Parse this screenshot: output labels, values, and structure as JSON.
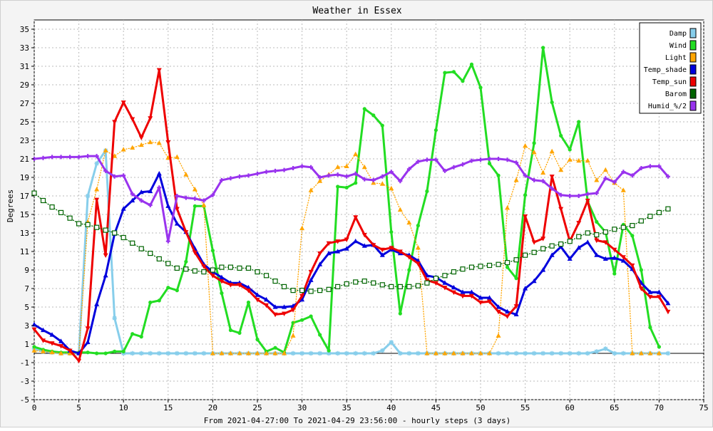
{
  "chart_data": {
    "type": "line",
    "title": "Weather in Essex",
    "xlabel": "From 2021-04-27:00 To 2021-04-29 23:56:00 - hourly steps (3 days)",
    "ylabel": "Degrees",
    "xlim": [
      0,
      75
    ],
    "ylim": [
      -5,
      36
    ],
    "xticks": [
      0,
      5,
      10,
      15,
      20,
      25,
      30,
      35,
      40,
      45,
      50,
      55,
      60,
      65,
      70,
      75
    ],
    "yticks": [
      -5,
      -3,
      -1,
      1,
      3,
      5,
      7,
      9,
      11,
      13,
      15,
      17,
      19,
      21,
      23,
      25,
      27,
      29,
      31,
      33,
      35
    ],
    "grid": true,
    "legend_position": "top-right",
    "series": [
      {
        "name": "Damp",
        "color": "#87ceeb",
        "style": "solid",
        "marker": "star",
        "values": [
          0.5,
          0.2,
          0.1,
          0,
          0,
          0,
          17,
          20.5,
          21.9,
          3.8,
          0,
          0,
          0,
          0,
          0,
          0,
          0,
          0,
          0,
          0,
          0,
          0,
          0,
          0,
          0,
          0,
          0,
          0,
          0,
          0,
          0,
          0,
          0,
          0,
          0,
          0,
          0,
          0,
          0,
          0.3,
          1.2,
          0,
          0,
          0,
          0,
          0,
          0,
          0,
          0,
          0,
          0,
          0,
          0,
          0,
          0,
          0,
          0,
          0,
          0,
          0,
          0,
          0,
          0,
          0.2,
          0.5,
          0,
          0,
          0,
          0,
          0,
          0,
          0
        ]
      },
      {
        "name": "Wind",
        "color": "#22dd22",
        "style": "solid",
        "marker": "circle",
        "values": [
          0.7,
          0.4,
          0.2,
          0.1,
          0.1,
          0.1,
          0.1,
          0,
          0,
          0.2,
          0.2,
          2.1,
          1.8,
          5.5,
          5.7,
          7.1,
          6.8,
          9.9,
          15.9,
          15.9,
          11.1,
          6.5,
          2.5,
          2.2,
          5.5,
          1.5,
          0.2,
          0.6,
          0.1,
          3.3,
          3.6,
          4,
          2,
          0.3,
          18,
          17.9,
          18.4,
          26.4,
          25.7,
          24.6,
          13.1,
          4.3,
          9,
          13.8,
          17.5,
          24.1,
          30.3,
          30.4,
          29.4,
          31.2,
          28.7,
          20.5,
          19.2,
          9.3,
          8.1,
          17.1,
          22.7,
          33,
          27.1,
          23.5,
          22,
          25,
          16.4,
          14.2,
          13.1,
          8.6,
          13.9,
          12.7,
          9,
          2.8,
          0.7,
          null
        ]
      },
      {
        "name": "Light",
        "color": "#ffa500",
        "style": "dotted",
        "marker": "triangle-up",
        "values": [
          0.3,
          0.2,
          0.1,
          0,
          0,
          0,
          14.2,
          17.7,
          21.9,
          21.3,
          22,
          22.2,
          22.5,
          22.8,
          22.7,
          21.1,
          21.2,
          19.3,
          17.7,
          16,
          0,
          0,
          0,
          0,
          0,
          0,
          0,
          0,
          0,
          1.9,
          13.5,
          17.6,
          18.6,
          19.3,
          20.1,
          20.2,
          21.5,
          20.1,
          18.4,
          18.3,
          17.8,
          15.5,
          14.1,
          11.4,
          0,
          0,
          0,
          0,
          0,
          0,
          0,
          0,
          1.9,
          15.7,
          18.7,
          22.4,
          21.7,
          19.5,
          21.8,
          19.8,
          20.9,
          20.8,
          20.8,
          18.7,
          19.8,
          18.4,
          17.6,
          0,
          0,
          0,
          0,
          null
        ]
      },
      {
        "name": "Temp_shade",
        "color": "#0000dd",
        "style": "solid",
        "marker": "triangle-up",
        "values": [
          3.1,
          2.5,
          2,
          1.3,
          0.3,
          0,
          1.2,
          5.3,
          8.4,
          12.9,
          15.6,
          16.5,
          17.4,
          17.5,
          19.4,
          15.9,
          14,
          13.1,
          11.3,
          9.6,
          8.8,
          8.2,
          7.6,
          7.6,
          7.1,
          6.3,
          5.8,
          5,
          5,
          5.1,
          5.8,
          7.9,
          9.6,
          10.8,
          11,
          11.3,
          12.1,
          11.6,
          11.7,
          10.6,
          11.2,
          10.8,
          10.6,
          10,
          8.4,
          8.2,
          7.6,
          7.1,
          6.6,
          6.6,
          6,
          6,
          5,
          4.5,
          4.2,
          7,
          7.8,
          9,
          10.6,
          11.5,
          10.2,
          11.4,
          12,
          10.6,
          10.2,
          10.3,
          10,
          9.1,
          7.6,
          6.6,
          6.6,
          5.4
        ]
      },
      {
        "name": "Temp_sun",
        "color": "#ee0000",
        "style": "solid",
        "marker": "triangle-down",
        "values": [
          2.6,
          1.4,
          1.1,
          0.8,
          0.3,
          -0.8,
          2.7,
          16.6,
          10.6,
          25,
          27.1,
          25.3,
          23.3,
          25.4,
          30.6,
          22.8,
          15.6,
          13.1,
          10.9,
          9.4,
          8.4,
          7.8,
          7.4,
          7.4,
          6.8,
          5.8,
          5.2,
          4.2,
          4.3,
          4.7,
          6.2,
          8.8,
          10.8,
          11.9,
          12.1,
          12.3,
          14.7,
          12.8,
          11.7,
          11.2,
          11.4,
          11,
          10.4,
          9.7,
          7.9,
          7.6,
          7.1,
          6.6,
          6.2,
          6.2,
          5.5,
          5.6,
          4.5,
          4,
          5.1,
          14.8,
          12,
          12.4,
          19.1,
          15.6,
          12.1,
          14.1,
          16.5,
          12.2,
          12,
          11.2,
          10.4,
          9.5,
          7,
          6.1,
          6.1,
          4.5
        ]
      },
      {
        "name": "Barom",
        "color": "#006400",
        "style": "dotted",
        "marker": "square",
        "values": [
          17.3,
          16.5,
          15.8,
          15.2,
          14.6,
          14,
          13.9,
          13.6,
          13.3,
          13,
          12.5,
          11.9,
          11.3,
          10.8,
          10.2,
          9.7,
          9.2,
          9.1,
          8.9,
          8.8,
          9,
          9.3,
          9.3,
          9.2,
          9.2,
          8.8,
          8.4,
          7.8,
          7.2,
          6.8,
          6.8,
          6.7,
          6.8,
          6.9,
          7.2,
          7.5,
          7.7,
          7.8,
          7.6,
          7.4,
          7.2,
          7.2,
          7.2,
          7.3,
          7.6,
          8.1,
          8.4,
          8.8,
          9.1,
          9.3,
          9.4,
          9.5,
          9.6,
          9.8,
          10.1,
          10.6,
          10.9,
          11.3,
          11.6,
          11.8,
          12.1,
          12.6,
          13,
          12.8,
          13.1,
          13.4,
          13.6,
          13.8,
          14.3,
          14.8,
          15.2,
          15.6
        ]
      },
      {
        "name": "Humid_%/2",
        "color": "#9933ee",
        "style": "solid",
        "marker": "cross",
        "values": [
          21,
          21.1,
          21.2,
          21.2,
          21.2,
          21.2,
          21.3,
          21.3,
          19.7,
          19.1,
          19.2,
          17.2,
          16.5,
          16,
          17.9,
          12.1,
          17,
          16.8,
          16.7,
          16.5,
          17.1,
          18.7,
          18.9,
          19.1,
          19.2,
          19.4,
          19.6,
          19.7,
          19.8,
          20,
          20.2,
          20.1,
          19,
          19.2,
          19.3,
          19.1,
          19.4,
          18.8,
          18.7,
          19.1,
          19.6,
          18.6,
          19.9,
          20.7,
          20.9,
          20.9,
          19.7,
          20.1,
          20.4,
          20.8,
          20.9,
          21,
          21,
          20.9,
          20.6,
          19.2,
          18.7,
          18.6,
          17.8,
          17.1,
          17,
          17,
          17.2,
          17.3,
          18.9,
          18.5,
          19.6,
          19.2,
          20,
          20.2,
          20.2,
          19.1
        ]
      }
    ]
  }
}
